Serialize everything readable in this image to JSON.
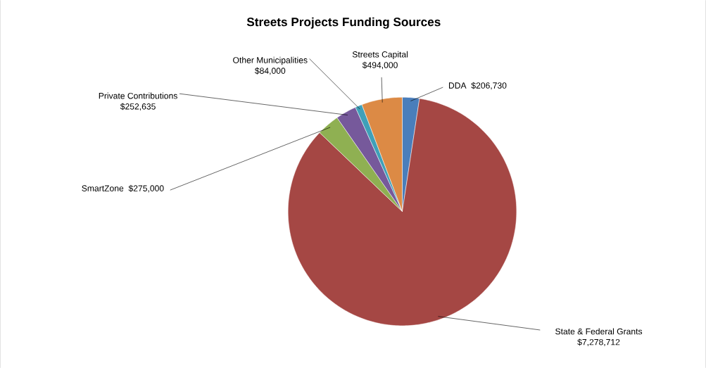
{
  "chart_data": {
    "type": "pie",
    "title": "Streets Projects Funding Sources",
    "categories": [
      "DDA",
      "State & Federal Grants",
      "SmartZone",
      "Private Contributions",
      "Other Municipalities",
      "Streets Capital"
    ],
    "values": [
      206730,
      7278712,
      275000,
      252635,
      84000,
      494000
    ],
    "value_labels": [
      "$206,730",
      "$7,278,712",
      "$275,000",
      "$252,635",
      "$84,000",
      "$494,000"
    ],
    "colors": [
      "#4a7ebb",
      "#a54744",
      "#8fb052",
      "#76599b",
      "#3fa0b8",
      "#dc8a45"
    ]
  }
}
